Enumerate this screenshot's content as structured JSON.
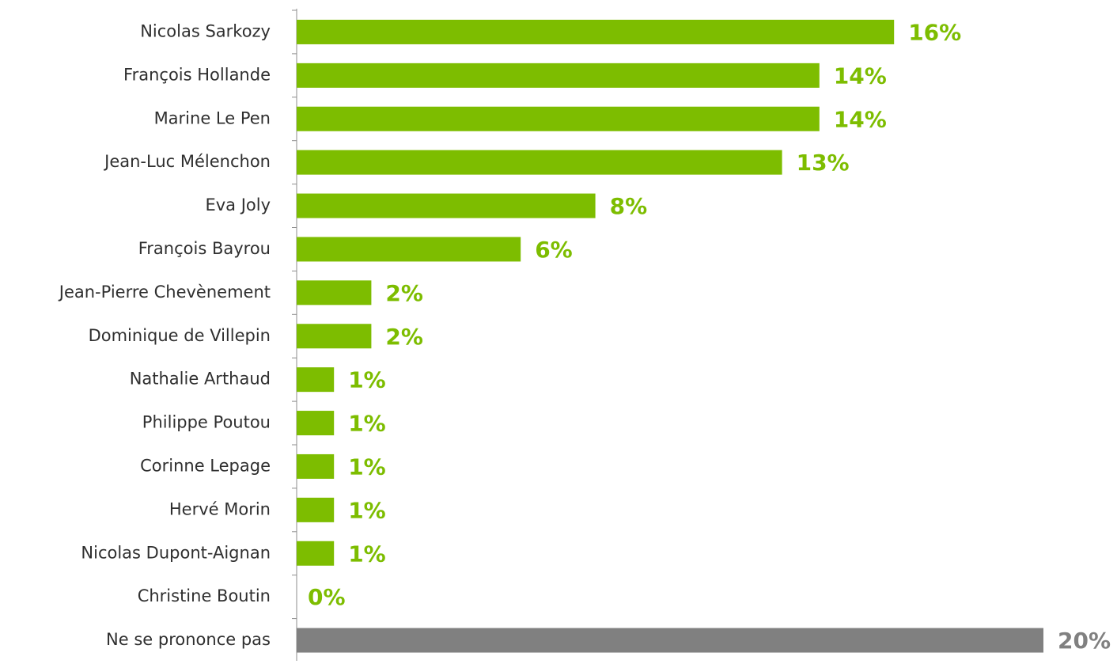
{
  "chart_data": {
    "type": "bar",
    "orientation": "horizontal",
    "title": "",
    "xlabel": "",
    "ylabel": "",
    "xlim": [
      0,
      20
    ],
    "grid": false,
    "legend": "none",
    "value_suffix": "%",
    "colors": {
      "candidate": "#7dbd00",
      "no_opinion": "#808080",
      "axis": "#8c8c8c",
      "category_text": "#2f2f2f"
    },
    "bars": [
      {
        "label": "Nicolas Sarkozy",
        "value": 16,
        "value_label": "16%",
        "group": "candidate"
      },
      {
        "label": "François Hollande",
        "value": 14,
        "value_label": "14%",
        "group": "candidate"
      },
      {
        "label": "Marine Le Pen",
        "value": 14,
        "value_label": "14%",
        "group": "candidate"
      },
      {
        "label": "Jean-Luc Mélenchon",
        "value": 13,
        "value_label": "13%",
        "group": "candidate"
      },
      {
        "label": "Eva Joly",
        "value": 8,
        "value_label": "8%",
        "group": "candidate"
      },
      {
        "label": "François Bayrou",
        "value": 6,
        "value_label": "6%",
        "group": "candidate"
      },
      {
        "label": "Jean-Pierre Chevènement",
        "value": 2,
        "value_label": "2%",
        "group": "candidate"
      },
      {
        "label": "Dominique de Villepin",
        "value": 2,
        "value_label": "2%",
        "group": "candidate"
      },
      {
        "label": "Nathalie Arthaud",
        "value": 1,
        "value_label": "1%",
        "group": "candidate"
      },
      {
        "label": "Philippe Poutou",
        "value": 1,
        "value_label": "1%",
        "group": "candidate"
      },
      {
        "label": "Corinne Lepage",
        "value": 1,
        "value_label": "1%",
        "group": "candidate"
      },
      {
        "label": "Hervé Morin",
        "value": 1,
        "value_label": "1%",
        "group": "candidate"
      },
      {
        "label": "Nicolas Dupont-Aignan",
        "value": 1,
        "value_label": "1%",
        "group": "candidate"
      },
      {
        "label": "Christine Boutin",
        "value": 0,
        "value_label": "0%",
        "group": "candidate"
      },
      {
        "label": "Ne se prononce pas",
        "value": 20,
        "value_label": "20%",
        "group": "no_opinion"
      }
    ]
  }
}
